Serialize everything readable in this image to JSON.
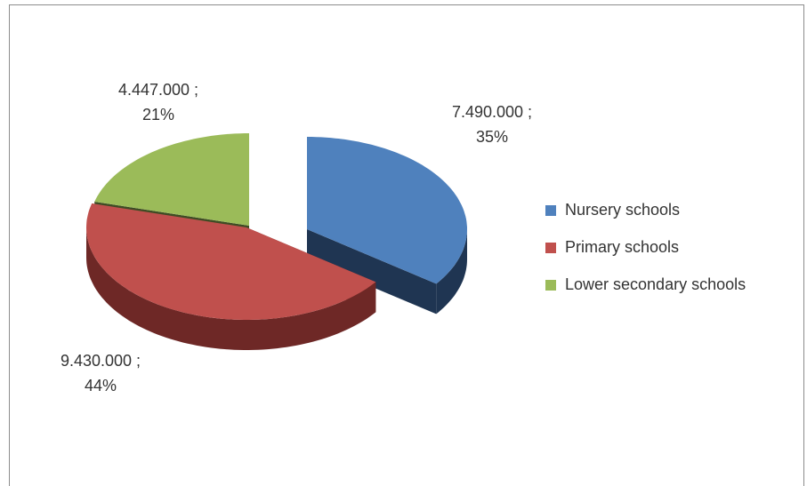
{
  "chart_data": {
    "type": "pie3d",
    "categories": [
      "Nursery schools",
      "Primary schools",
      "Lower secondary schools"
    ],
    "values": [
      7490000,
      9430000,
      4447000
    ],
    "value_labels": [
      "7.490.000 ;",
      "9.430.000 ;",
      "4.447.000 ;"
    ],
    "percent_labels": [
      "35%",
      "44%",
      "21%"
    ],
    "colors": [
      "#4f81bd",
      "#c0504d",
      "#9bbb59"
    ],
    "side_colors": [
      "#1f3552",
      "#6e2826",
      "#3f4c24"
    ],
    "legend": "right"
  }
}
